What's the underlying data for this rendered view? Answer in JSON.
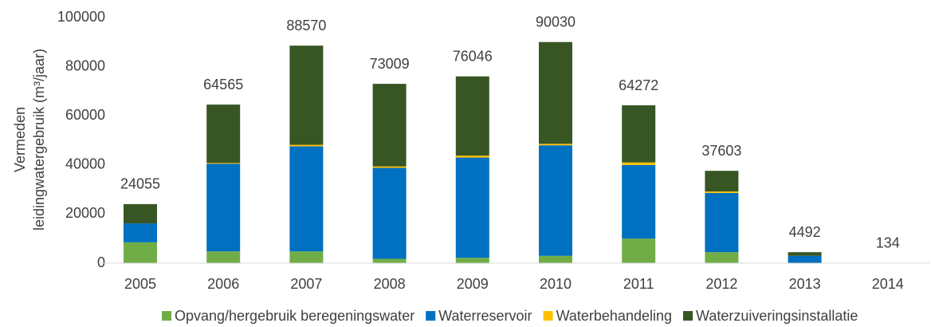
{
  "chart_data": {
    "type": "stacked_bar",
    "ylabel": [
      "Vermeden",
      "leidingwatergebruik (m³/jaar)"
    ],
    "categories": [
      "2005",
      "2006",
      "2007",
      "2008",
      "2009",
      "2010",
      "2011",
      "2012",
      "2013",
      "2014"
    ],
    "series": [
      {
        "name": "Opvang/hergebruik beregeningswater",
        "color": "#70ad47",
        "values": [
          8500,
          4800,
          4800,
          1800,
          2200,
          3000,
          10000,
          4500,
          0,
          134
        ]
      },
      {
        "name": "Waterreservoir",
        "color": "#0070c0",
        "values": [
          7700,
          35700,
          42800,
          37000,
          40800,
          45000,
          30000,
          24100,
          3000,
          0
        ]
      },
      {
        "name": "Waterbehandeling",
        "color": "#ffc000",
        "values": [
          0,
          300,
          600,
          600,
          800,
          600,
          1000,
          600,
          0,
          0
        ]
      },
      {
        "name": "Waterzuiveringsinstallatie",
        "color": "#375623",
        "values": [
          7855,
          23765,
          40370,
          33609,
          32246,
          41430,
          23272,
          8403,
          1492,
          0
        ]
      }
    ],
    "totals": [
      24055,
      64565,
      88570,
      73009,
      76046,
      90030,
      64272,
      37603,
      4492,
      134
    ],
    "ylim": [
      0,
      100000
    ],
    "yticks": [
      0,
      20000,
      40000,
      60000,
      80000,
      100000
    ],
    "grid": false,
    "legend": "bottom"
  }
}
